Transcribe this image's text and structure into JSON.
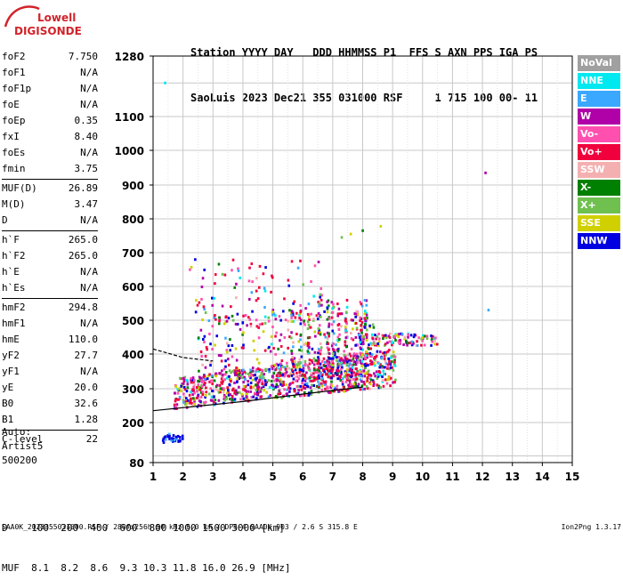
{
  "logo": {
    "line1": "Lowell",
    "line2": "DIGISONDE",
    "color": "#d2232a"
  },
  "header": {
    "line1": "Station YYYY DAY   DDD HHMMSS P1  FFS S AXN PPS IGA PS",
    "line2": "SaoLuis 2023 Dec21 355 031000 RSF     1 715 100 00- 11"
  },
  "params": {
    "group1": [
      {
        "name": "foF2",
        "value": "7.750"
      },
      {
        "name": "foF1",
        "value": "N/A"
      },
      {
        "name": "foF1p",
        "value": "N/A"
      },
      {
        "name": "foE",
        "value": "N/A"
      },
      {
        "name": "foEp",
        "value": "0.35"
      },
      {
        "name": "fxI",
        "value": "8.40"
      },
      {
        "name": "foEs",
        "value": "N/A"
      },
      {
        "name": "fmin",
        "value": "3.75"
      }
    ],
    "group2": [
      {
        "name": "MUF(D)",
        "value": "26.89"
      },
      {
        "name": "M(D)",
        "value": "3.47"
      },
      {
        "name": "D",
        "value": "N/A"
      }
    ],
    "group3": [
      {
        "name": "h`F",
        "value": "265.0"
      },
      {
        "name": "h`F2",
        "value": "265.0"
      },
      {
        "name": "h`E",
        "value": "N/A"
      },
      {
        "name": "h`Es",
        "value": "N/A"
      }
    ],
    "group4": [
      {
        "name": "hmF2",
        "value": "294.8"
      },
      {
        "name": "hmF1",
        "value": "N/A"
      },
      {
        "name": "hmE",
        "value": "110.0"
      },
      {
        "name": "yF2",
        "value": "27.7"
      },
      {
        "name": "yF1",
        "value": "N/A"
      },
      {
        "name": "yE",
        "value": "20.0"
      },
      {
        "name": "B0",
        "value": "32.6"
      },
      {
        "name": "B1",
        "value": "1.28"
      }
    ],
    "group5": [
      {
        "name": "C-level",
        "value": "22"
      }
    ]
  },
  "auto": {
    "line1": "Auto:",
    "line2": "Artist5",
    "line3": "500200"
  },
  "legend": [
    {
      "label": "NoVal",
      "color": "#a0a0a0"
    },
    {
      "label": "NNE",
      "color": "#00e8f0"
    },
    {
      "label": "E",
      "color": "#3aa8ff"
    },
    {
      "label": "W",
      "color": "#b000a8"
    },
    {
      "label": "Vo-",
      "color": "#ff50b0"
    },
    {
      "label": "Vo+",
      "color": "#f0003c"
    },
    {
      "label": "SSW",
      "color": "#f4b0b0"
    },
    {
      "label": "X-",
      "color": "#008000"
    },
    {
      "label": "X+",
      "color": "#70c050"
    },
    {
      "label": "SSE",
      "color": "#d0d000"
    },
    {
      "label": "NNW",
      "color": "#0000e0"
    }
  ],
  "chart_data": {
    "type": "scatter",
    "title": "",
    "xlabel": "",
    "ylabel": "",
    "xlim": [
      1,
      15
    ],
    "ylim": [
      80,
      1280
    ],
    "x_ticks": [
      "1",
      "2",
      "3",
      "4",
      "5",
      "6",
      "7",
      "8",
      "9",
      "10",
      "11",
      "12",
      "13",
      "14",
      "15"
    ],
    "y_ticks": [
      {
        "value": 80,
        "label": "80"
      },
      {
        "value": 200,
        "label": "200"
      },
      {
        "value": 300,
        "label": "300"
      },
      {
        "value": 400,
        "label": "400"
      },
      {
        "value": 500,
        "label": "500"
      },
      {
        "value": 600,
        "label": "600"
      },
      {
        "value": 700,
        "label": "700"
      },
      {
        "value": 800,
        "label": "800"
      },
      {
        "value": 900,
        "label": "900"
      },
      {
        "value": 1000,
        "label": "1000"
      },
      {
        "value": 1100,
        "label": "1100"
      },
      {
        "value": 1280,
        "label": "1280"
      }
    ],
    "height_scale": "nonlinear (80, 200 then linear 200-1100, 1280 top)",
    "grid": true,
    "traces": [
      {
        "name": "trace-upper",
        "points": [
          [
            1.0,
            415
          ],
          [
            2.0,
            390
          ],
          [
            3.0,
            380
          ]
        ]
      },
      {
        "name": "trace-lower",
        "points": [
          [
            1.0,
            235
          ],
          [
            4.0,
            262
          ],
          [
            7.0,
            295
          ],
          [
            8.0,
            305
          ]
        ]
      }
    ],
    "clusters": [
      {
        "name": "main-echo",
        "x_range": [
          1.7,
          9.1
        ],
        "y_range": [
          240,
          420
        ],
        "count": 900
      },
      {
        "name": "spread-echo",
        "x_range": [
          2.5,
          8.4
        ],
        "y_range": [
          300,
          520
        ],
        "count": 320
      },
      {
        "name": "f-spread-streaks",
        "x_range": [
          5.6,
          8.2
        ],
        "y_range": [
          330,
          560
        ],
        "count": 260
      },
      {
        "name": "high-band",
        "x_range": [
          7.8,
          10.6
        ],
        "y_range": [
          425,
          460
        ],
        "count": 120
      },
      {
        "name": "low-echo",
        "x_range": [
          1.3,
          2.0
        ],
        "y_range": [
          140,
          165
        ],
        "count": 30
      },
      {
        "name": "upper-scatter",
        "x_range": [
          2.2,
          6.8
        ],
        "y_range": [
          500,
          680
        ],
        "count": 90
      }
    ],
    "isolated_points": [
      [
        1.4,
        1200
      ],
      [
        12.1,
        935
      ],
      [
        12.2,
        530
      ],
      [
        8.6,
        778
      ],
      [
        8.0,
        765
      ],
      [
        7.3,
        745
      ],
      [
        7.6,
        755
      ]
    ]
  },
  "dmuf": {
    "line1": "D    100  200  400  600  800 1000 1500 3000 [km]",
    "line2": "MUF  8.1  8.2  8.6  9.3 10.3 11.8 16.0 26.9 [MHz]"
  },
  "footer": {
    "left": "SAA0K_2023355031000.RSF / 280fx256h 50 kHz 5.0 km / DPS-4 SAA0K 903 / 2.6 S 315.8 E",
    "right": "Ion2Png 1.3.17"
  }
}
